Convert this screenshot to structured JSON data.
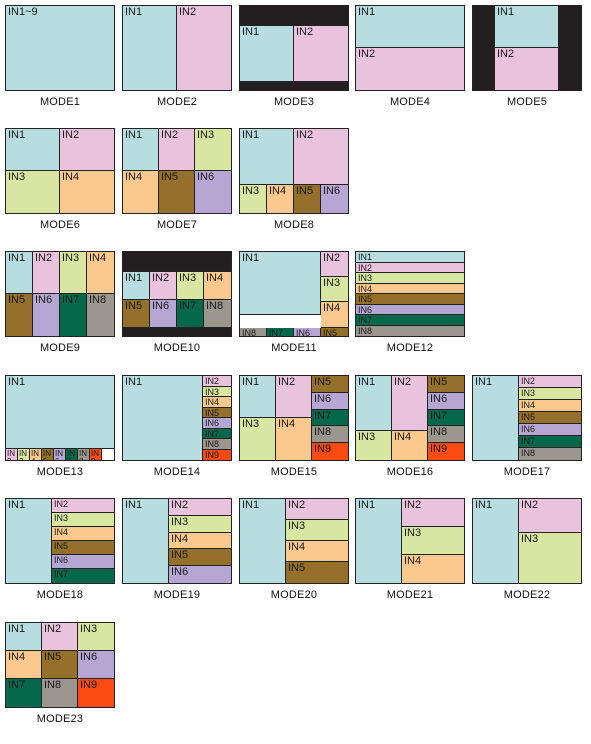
{
  "colors": {
    "IN1": "#b7dde0",
    "IN2": "#e9c3dd",
    "IN3": "#d8e6a1",
    "IN4": "#fbc98e",
    "IN5": "#94702b",
    "IN6": "#b6a6d4",
    "IN7": "#03694a",
    "IN8": "#9b978f",
    "IN9": "#fb4a12",
    "black": "#231f20"
  },
  "modes": [
    {
      "caption": "MODE1",
      "cells": [
        {
          "label": "IN1~9",
          "color": "IN1"
        }
      ]
    },
    {
      "caption": "MODE2",
      "cells": [
        {
          "label": "IN1",
          "color": "IN1"
        },
        {
          "label": "IN2",
          "color": "IN2"
        }
      ]
    },
    {
      "caption": "MODE3",
      "cells": [
        {
          "label": "",
          "color": "black"
        },
        {
          "label": "IN1",
          "color": "IN1"
        },
        {
          "label": "IN2",
          "color": "IN2"
        },
        {
          "label": "",
          "color": "black"
        }
      ]
    },
    {
      "caption": "MODE4",
      "cells": [
        {
          "label": "IN1",
          "color": "IN1"
        },
        {
          "label": "IN2",
          "color": "IN2"
        }
      ]
    },
    {
      "caption": "MODE5",
      "cells": [
        {
          "label": "",
          "color": "black"
        },
        {
          "label": "IN1",
          "color": "IN1"
        },
        {
          "label": "IN2",
          "color": "IN2"
        },
        {
          "label": "",
          "color": "black"
        }
      ]
    },
    {
      "caption": "MODE6",
      "cells": [
        {
          "label": "IN1",
          "color": "IN1"
        },
        {
          "label": "IN2",
          "color": "IN2"
        },
        {
          "label": "IN3",
          "color": "IN3"
        },
        {
          "label": "IN4",
          "color": "IN4"
        }
      ]
    },
    {
      "caption": "MODE7",
      "cells": [
        {
          "label": "IN1",
          "color": "IN1"
        },
        {
          "label": "IN2",
          "color": "IN2"
        },
        {
          "label": "IN3",
          "color": "IN3"
        },
        {
          "label": "IN4",
          "color": "IN4"
        },
        {
          "label": "IN5",
          "color": "IN5"
        },
        {
          "label": "IN6",
          "color": "IN6"
        }
      ]
    },
    {
      "caption": "MODE8",
      "cells": [
        {
          "label": "IN1",
          "color": "IN1"
        },
        {
          "label": "IN2",
          "color": "IN2"
        },
        {
          "label": "IN3",
          "color": "IN3"
        },
        {
          "label": "IN4",
          "color": "IN4"
        },
        {
          "label": "IN5",
          "color": "IN5"
        },
        {
          "label": "IN6",
          "color": "IN6"
        }
      ]
    },
    {
      "caption": "MODE9",
      "cells": [
        {
          "label": "IN1",
          "color": "IN1"
        },
        {
          "label": "IN2",
          "color": "IN2"
        },
        {
          "label": "IN3",
          "color": "IN3"
        },
        {
          "label": "IN4",
          "color": "IN4"
        },
        {
          "label": "IN5",
          "color": "IN5"
        },
        {
          "label": "IN6",
          "color": "IN6"
        },
        {
          "label": "IN7",
          "color": "IN7"
        },
        {
          "label": "IN8",
          "color": "IN8"
        }
      ]
    },
    {
      "caption": "MODE10",
      "cells": [
        {
          "label": "",
          "color": "black"
        },
        {
          "label": "IN1",
          "color": "IN1"
        },
        {
          "label": "IN2",
          "color": "IN2"
        },
        {
          "label": "IN3",
          "color": "IN3"
        },
        {
          "label": "IN4",
          "color": "IN4"
        },
        {
          "label": "IN5",
          "color": "IN5"
        },
        {
          "label": "IN6",
          "color": "IN6"
        },
        {
          "label": "IN7",
          "color": "IN7"
        },
        {
          "label": "IN8",
          "color": "IN8"
        },
        {
          "label": "",
          "color": "black"
        }
      ]
    },
    {
      "caption": "MODE11",
      "cells": [
        {
          "label": "IN1",
          "color": "IN1"
        },
        {
          "label": "IN2",
          "color": "IN2"
        },
        {
          "label": "IN3",
          "color": "IN3"
        },
        {
          "label": "IN4",
          "color": "IN4"
        },
        {
          "label": "IN8",
          "color": "IN8"
        },
        {
          "label": "IN7",
          "color": "IN7"
        },
        {
          "label": "IN6",
          "color": "IN6"
        },
        {
          "label": "IN5",
          "color": "IN5"
        }
      ]
    },
    {
      "caption": "MODE12",
      "cells": [
        {
          "label": "IN1",
          "color": "IN1"
        },
        {
          "label": "IN2",
          "color": "IN2"
        },
        {
          "label": "IN3",
          "color": "IN3"
        },
        {
          "label": "IN4",
          "color": "IN4"
        },
        {
          "label": "IN5",
          "color": "IN5"
        },
        {
          "label": "IN6",
          "color": "IN6"
        },
        {
          "label": "IN7",
          "color": "IN7"
        },
        {
          "label": "IN8",
          "color": "IN8"
        }
      ]
    },
    {
      "caption": "MODE13",
      "cells": [
        {
          "label": "IN1",
          "color": "IN1"
        },
        {
          "label": "IN 2",
          "color": "IN2"
        },
        {
          "label": "IN 3",
          "color": "IN3"
        },
        {
          "label": "IN 4",
          "color": "IN4"
        },
        {
          "label": "IN 5",
          "color": "IN5"
        },
        {
          "label": "IN 6",
          "color": "IN6"
        },
        {
          "label": "IN 7",
          "color": "IN7"
        },
        {
          "label": "IN 8",
          "color": "IN8"
        },
        {
          "label": "IN 9",
          "color": "IN9"
        }
      ]
    },
    {
      "caption": "MODE14",
      "cells": [
        {
          "label": "IN1",
          "color": "IN1"
        },
        {
          "label": "IN2",
          "color": "IN2"
        },
        {
          "label": "IN3",
          "color": "IN3"
        },
        {
          "label": "IN4",
          "color": "IN4"
        },
        {
          "label": "IN5",
          "color": "IN5"
        },
        {
          "label": "IN6",
          "color": "IN6"
        },
        {
          "label": "IN7",
          "color": "IN7"
        },
        {
          "label": "IN8",
          "color": "IN8"
        },
        {
          "label": "IN9",
          "color": "IN9"
        }
      ]
    },
    {
      "caption": "MODE15",
      "cells": [
        {
          "label": "IN1",
          "color": "IN1"
        },
        {
          "label": "IN2",
          "color": "IN2"
        },
        {
          "label": "IN3",
          "color": "IN3"
        },
        {
          "label": "IN4",
          "color": "IN4"
        },
        {
          "label": "IN5",
          "color": "IN5"
        },
        {
          "label": "IN6",
          "color": "IN6"
        },
        {
          "label": "IN7",
          "color": "IN7"
        },
        {
          "label": "IN8",
          "color": "IN8"
        },
        {
          "label": "IN9",
          "color": "IN9"
        }
      ]
    },
    {
      "caption": "MODE16",
      "cells": [
        {
          "label": "IN1",
          "color": "IN1"
        },
        {
          "label": "IN2",
          "color": "IN2"
        },
        {
          "label": "IN3",
          "color": "IN3"
        },
        {
          "label": "IN4",
          "color": "IN4"
        },
        {
          "label": "IN5",
          "color": "IN5"
        },
        {
          "label": "IN6",
          "color": "IN6"
        },
        {
          "label": "IN7",
          "color": "IN7"
        },
        {
          "label": "IN8",
          "color": "IN8"
        },
        {
          "label": "IN9",
          "color": "IN9"
        }
      ]
    },
    {
      "caption": "MODE17",
      "cells": [
        {
          "label": "IN1",
          "color": "IN1"
        },
        {
          "label": "IN2",
          "color": "IN2"
        },
        {
          "label": "IN3",
          "color": "IN3"
        },
        {
          "label": "IN4",
          "color": "IN4"
        },
        {
          "label": "IN5",
          "color": "IN5"
        },
        {
          "label": "IN6",
          "color": "IN6"
        },
        {
          "label": "IN7",
          "color": "IN7"
        },
        {
          "label": "IN8",
          "color": "IN8"
        }
      ]
    },
    {
      "caption": "MODE18",
      "cells": [
        {
          "label": "IN1",
          "color": "IN1"
        },
        {
          "label": "IN2",
          "color": "IN2"
        },
        {
          "label": "IN3",
          "color": "IN3"
        },
        {
          "label": "IN4",
          "color": "IN4"
        },
        {
          "label": "IN5",
          "color": "IN5"
        },
        {
          "label": "IN6",
          "color": "IN6"
        },
        {
          "label": "IN7",
          "color": "IN7"
        }
      ]
    },
    {
      "caption": "MODE19",
      "cells": [
        {
          "label": "IN1",
          "color": "IN1"
        },
        {
          "label": "IN2",
          "color": "IN2"
        },
        {
          "label": "IN3",
          "color": "IN3"
        },
        {
          "label": "IN4",
          "color": "IN4"
        },
        {
          "label": "IN5",
          "color": "IN5"
        },
        {
          "label": "IN6",
          "color": "IN6"
        }
      ]
    },
    {
      "caption": "MODE20",
      "cells": [
        {
          "label": "IN1",
          "color": "IN1"
        },
        {
          "label": "IN2",
          "color": "IN2"
        },
        {
          "label": "IN3",
          "color": "IN3"
        },
        {
          "label": "IN4",
          "color": "IN4"
        },
        {
          "label": "IN5",
          "color": "IN5"
        }
      ]
    },
    {
      "caption": "MODE21",
      "cells": [
        {
          "label": "IN1",
          "color": "IN1"
        },
        {
          "label": "IN2",
          "color": "IN2"
        },
        {
          "label": "IN3",
          "color": "IN3"
        },
        {
          "label": "IN4",
          "color": "IN4"
        }
      ]
    },
    {
      "caption": "MODE22",
      "cells": [
        {
          "label": "IN1",
          "color": "IN1"
        },
        {
          "label": "IN2",
          "color": "IN2"
        },
        {
          "label": "IN3",
          "color": "IN3"
        }
      ]
    },
    {
      "caption": "MODE23",
      "cells": [
        {
          "label": "IN1",
          "color": "IN1"
        },
        {
          "label": "IN2",
          "color": "IN2"
        },
        {
          "label": "IN3",
          "color": "IN3"
        },
        {
          "label": "IN4",
          "color": "IN4"
        },
        {
          "label": "IN5",
          "color": "IN5"
        },
        {
          "label": "IN6",
          "color": "IN6"
        },
        {
          "label": "IN7",
          "color": "IN7"
        },
        {
          "label": "IN8",
          "color": "IN8"
        },
        {
          "label": "IN9",
          "color": "IN9"
        }
      ]
    }
  ]
}
